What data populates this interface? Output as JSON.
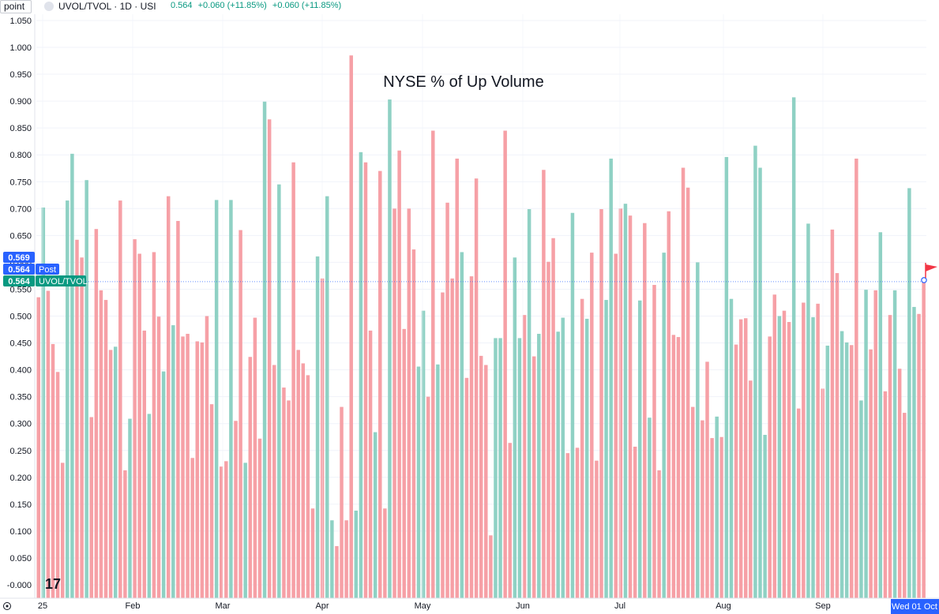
{
  "header": {
    "scale_mode": "point",
    "symbol": "UVOL/TVOL · 1D · USI",
    "last": "0.564",
    "change": "+0.060 (+11.85%)",
    "change2": "+0.060 (+11.85%)"
  },
  "colors": {
    "up": "#8fd1c4",
    "down": "#f6a0a6",
    "label_blue": "#2962ff",
    "label_green": "#089981",
    "flag": "#f23645"
  },
  "icons": {
    "logo": "tradingview-logo-icon",
    "settings": "settings-icon",
    "flag": "flag-icon"
  },
  "price_labels": [
    {
      "text": "0.569",
      "tag": ""
    },
    {
      "text": "0.564",
      "tag": "Post"
    },
    {
      "text": "0.564",
      "tag": "UVOL/TVOL"
    }
  ],
  "chart_data": {
    "type": "bar",
    "title": "NYSE % of Up Volume",
    "y_ticks": [
      "-0.000",
      "0.050",
      "0.100",
      "0.150",
      "0.200",
      "0.250",
      "0.300",
      "0.350",
      "0.400",
      "0.450",
      "0.500",
      "0.550",
      "0.600",
      "0.650",
      "0.700",
      "0.750",
      "0.800",
      "0.850",
      "0.900",
      "0.950",
      "1.000",
      "1.050"
    ],
    "x_ticks": [
      "25",
      "Feb",
      "Mar",
      "Apr",
      "May",
      "Jun",
      "Jul",
      "Aug",
      "Sep"
    ],
    "x_current_label": "Wed 01 Oct",
    "ylim": [
      -0.03,
      1.06
    ],
    "grid": true,
    "current_value": 0.564,
    "values": [
      0.535,
      0.702,
      0.547,
      0.448,
      0.396,
      0.227,
      0.715,
      0.802,
      0.642,
      0.609,
      0.753,
      0.312,
      0.662,
      0.548,
      0.53,
      0.437,
      0.443,
      0.715,
      0.213,
      0.309,
      0.643,
      0.616,
      0.473,
      0.318,
      0.619,
      0.499,
      0.397,
      0.723,
      0.483,
      0.677,
      0.462,
      0.467,
      0.236,
      0.453,
      0.451,
      0.5,
      0.336,
      0.716,
      0.22,
      0.23,
      0.716,
      0.305,
      0.66,
      0.227,
      0.424,
      0.497,
      0.272,
      0.899,
      0.866,
      0.409,
      0.745,
      0.367,
      0.343,
      0.786,
      0.437,
      0.412,
      0.39,
      0.142,
      0.611,
      0.57,
      0.723,
      0.12,
      0.072,
      0.331,
      0.12,
      0.985,
      0.138,
      0.805,
      0.786,
      0.473,
      0.284,
      0.77,
      0.142,
      0.903,
      0.7,
      0.808,
      0.476,
      0.7,
      0.624,
      0.406,
      0.51,
      0.35,
      0.845,
      0.41,
      0.544,
      0.711,
      0.57,
      0.793,
      0.619,
      0.385,
      0.574,
      0.756,
      0.426,
      0.409,
      0.092,
      0.459,
      0.459,
      0.845,
      0.264,
      0.609,
      0.459,
      0.502,
      0.699,
      0.425,
      0.467,
      0.772,
      0.601,
      0.645,
      0.471,
      0.497,
      0.245,
      0.692,
      0.255,
      0.532,
      0.495,
      0.618,
      0.231,
      0.699,
      0.53,
      0.793,
      0.616,
      0.7,
      0.709,
      0.687,
      0.257,
      0.529,
      0.673,
      0.311,
      0.558,
      0.213,
      0.618,
      0.695,
      0.465,
      0.461,
      0.776,
      0.739,
      0.331,
      0.6,
      0.306,
      0.415,
      0.273,
      0.313,
      0.275,
      0.796,
      0.532,
      0.447,
      0.494,
      0.496,
      0.38,
      0.817,
      0.776,
      0.279,
      0.462,
      0.54,
      0.5,
      0.51,
      0.489,
      0.907,
      0.328,
      0.525,
      0.672,
      0.498,
      0.523,
      0.365,
      0.445,
      0.661,
      0.58,
      0.472,
      0.451,
      0.446,
      0.793,
      0.343,
      0.549,
      0.438,
      0.548,
      0.656,
      0.36,
      0.502,
      0.548,
      0.402,
      0.32,
      0.738,
      0.517,
      0.504,
      0.564
    ],
    "directions": "dudddduuddudddddudduddduddududdddddddudduddudddudduddddddduduudddduuddudduddddduudduddddudddddduudduudududdduududduddduudduddududdudddddduddduduudddduuudduddudduuddudduudduudduddudduudduddduu"
  }
}
